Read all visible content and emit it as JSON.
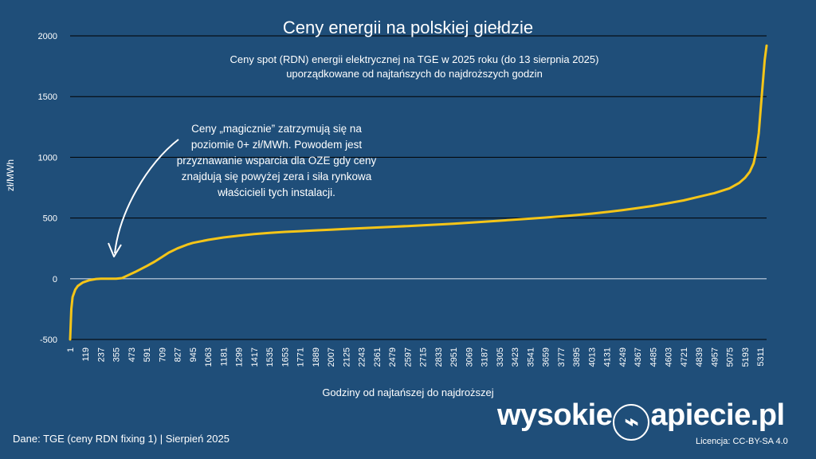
{
  "title": "Ceny energii na polskiej giełdzie",
  "subtitle_line1": "Ceny spot (RDN) energii elektrycznej na TGE w 2025 roku (do 13 sierpnia 2025)",
  "subtitle_line2": "uporządkowane od najtańszych do najdroższych godzin",
  "annotation": "Ceny „magicznie” zatrzymują się na poziomie 0+ zł/MWh. Powodem jest przyznawanie wsparcia dla OZE gdy ceny znajdują się powyżej zera i siła rynkowa właścicieli tych instalacji.",
  "footer": {
    "source": "Dane: TGE (ceny RDN fixing 1)   |   Sierpień 2025",
    "license": "Licencja: CC-BY-SA 4.0",
    "brand_left": "wysokie",
    "brand_right": "apiecie.pl"
  },
  "colors": {
    "background": "#1f4e79",
    "line": "#f5c518",
    "grid": "#000000",
    "text": "#ffffff"
  },
  "chart_data": {
    "type": "line",
    "xlabel": "Godziny od najtańszej do najdroższej",
    "ylabel": "zł/MWh",
    "ylim": [
      -500,
      2000
    ],
    "yticks": [
      -500,
      0,
      500,
      1000,
      1500,
      2000
    ],
    "xlim": [
      1,
      5360
    ],
    "xticks": [
      1,
      119,
      237,
      355,
      473,
      591,
      709,
      827,
      945,
      1063,
      1181,
      1299,
      1417,
      1535,
      1653,
      1771,
      1889,
      2007,
      2125,
      2243,
      2361,
      2479,
      2597,
      2715,
      2833,
      2951,
      3069,
      3187,
      3305,
      3423,
      3541,
      3659,
      3777,
      3895,
      4013,
      4131,
      4249,
      4367,
      4485,
      4603,
      4721,
      4839,
      4957,
      5075,
      5193,
      5311
    ],
    "grid": true,
    "series": [
      {
        "x": [
          1,
          10,
          20,
          40,
          60,
          100,
          150,
          200,
          237,
          300,
          355,
          400,
          450,
          500,
          591,
          650,
          709,
          760,
          827,
          900,
          945,
          1063,
          1181,
          1299,
          1417,
          1535,
          1653,
          1771,
          1889,
          2007,
          2125,
          2243,
          2361,
          2479,
          2597,
          2715,
          2833,
          2951,
          3069,
          3187,
          3305,
          3423,
          3541,
          3659,
          3777,
          3895,
          4013,
          4131,
          4249,
          4367,
          4485,
          4603,
          4721,
          4839,
          4957,
          5075,
          5150,
          5193,
          5230,
          5260,
          5280,
          5300,
          5311,
          5330,
          5345,
          5360
        ],
        "values": [
          -500,
          -250,
          -150,
          -90,
          -60,
          -30,
          -12,
          -2,
          0,
          0,
          0,
          5,
          30,
          55,
          105,
          140,
          180,
          215,
          250,
          280,
          295,
          320,
          340,
          355,
          368,
          378,
          386,
          392,
          398,
          404,
          410,
          416,
          422,
          428,
          434,
          440,
          446,
          453,
          461,
          470,
          478,
          487,
          495,
          504,
          514,
          524,
          536,
          550,
          565,
          582,
          600,
          622,
          645,
          675,
          705,
          745,
          790,
          830,
          880,
          950,
          1050,
          1200,
          1350,
          1600,
          1800,
          1920
        ]
      }
    ]
  }
}
